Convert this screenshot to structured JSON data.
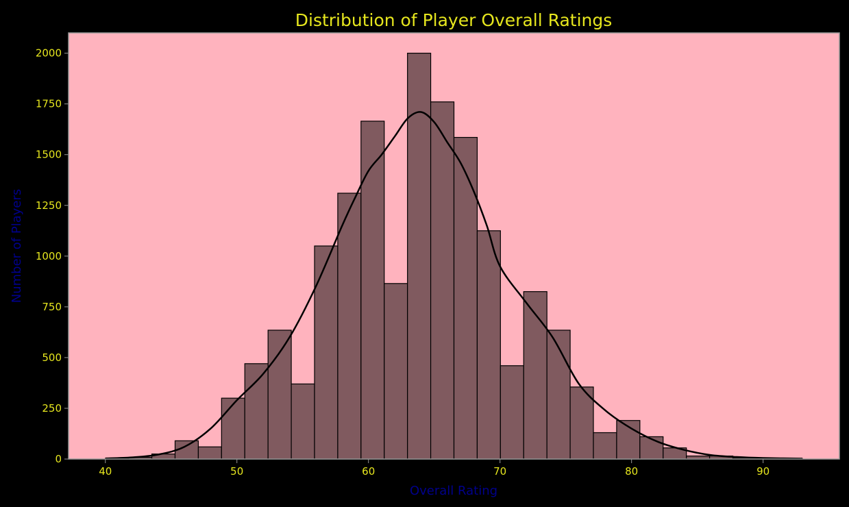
{
  "chart_data": {
    "type": "histogram",
    "title": "Distribution of Player Overall Ratings",
    "xlabel": "Overall Rating",
    "ylabel": "Number of Players",
    "xlim": [
      37.2,
      95.8
    ],
    "ylim": [
      0,
      2100
    ],
    "xticks": [
      40,
      50,
      60,
      70,
      80,
      90
    ],
    "yticks": [
      0,
      250,
      500,
      750,
      1000,
      1250,
      1500,
      1750,
      2000
    ],
    "bin_edges": [
      40.0,
      41.767,
      43.533,
      45.3,
      47.067,
      48.833,
      50.6,
      52.367,
      54.133,
      55.9,
      57.667,
      59.433,
      61.2,
      62.967,
      64.733,
      66.5,
      68.267,
      70.033,
      71.8,
      73.567,
      75.333,
      77.1,
      78.867,
      80.633,
      82.4,
      84.167,
      85.933,
      87.7,
      89.467,
      91.233,
      93.0
    ],
    "counts": [
      3,
      8,
      25,
      90,
      60,
      300,
      470,
      635,
      370,
      1050,
      1310,
      1665,
      865,
      2000,
      1760,
      1585,
      1125,
      460,
      825,
      635,
      355,
      130,
      190,
      110,
      55,
      15,
      15,
      5,
      2,
      1
    ],
    "kde": {
      "x": [
        40,
        42,
        44,
        46,
        48,
        50,
        52,
        54,
        56,
        58,
        59,
        60,
        61,
        62,
        63,
        64,
        65,
        66,
        67,
        68,
        69,
        70,
        72,
        74,
        76,
        78,
        80,
        82,
        84,
        86,
        88,
        90,
        93
      ],
      "y": [
        3,
        8,
        22,
        60,
        150,
        290,
        420,
        600,
        850,
        1150,
        1290,
        1420,
        1500,
        1590,
        1680,
        1710,
        1660,
        1560,
        1460,
        1320,
        1150,
        950,
        770,
        600,
        370,
        240,
        150,
        85,
        45,
        20,
        10,
        5,
        2
      ]
    },
    "grid": false,
    "legend": "none",
    "colors": {
      "figure_background": "#000000",
      "plot_background": "#ffb3be",
      "bar_fill": "#805a5f",
      "bar_edge": "#000000",
      "kde_line": "#000000",
      "title_color": "#e6e61e",
      "tick_label_color": "#e6e61e",
      "axis_label_color": "#00008b",
      "spine_color": "#999999"
    }
  }
}
